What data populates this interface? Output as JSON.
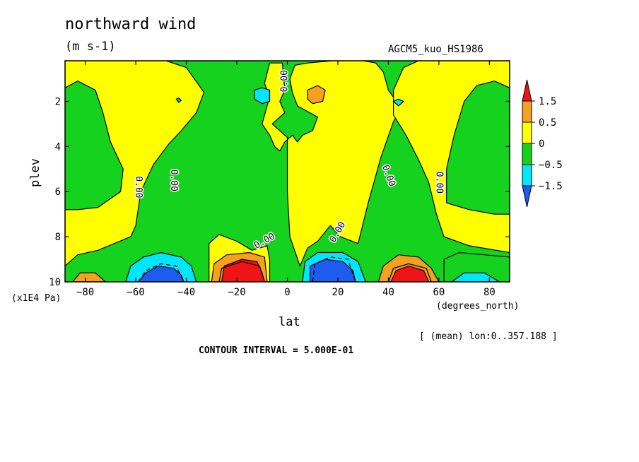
{
  "chart_data": {
    "type": "heatmap",
    "title": "northward wind",
    "units": "(m s-1)",
    "run_label": "AGCM5_kuo_HS1986",
    "xlabel": "lat",
    "x_units": "(degrees_north)",
    "ylabel": "plev",
    "y_units": "(x1E4 Pa)",
    "subset_label": "[ (mean) lon:0..357.188 ]",
    "contour_interval_label": "CONTOUR INTERVAL = 5.000E-01",
    "xlim": [
      -88,
      88
    ],
    "ylim": [
      10,
      0.2
    ],
    "x_ticks": [
      -80,
      -60,
      -40,
      -20,
      0,
      20,
      40,
      60,
      80
    ],
    "x_tick_labels": [
      "−80",
      "−60",
      "−40",
      "−20",
      "0",
      "20",
      "40",
      "60",
      "80"
    ],
    "y_ticks": [
      2,
      4,
      6,
      8,
      10
    ],
    "y_tick_labels": [
      "2",
      "4",
      "6",
      "8",
      "10"
    ],
    "contour_label": "0.00",
    "colorbar": {
      "levels": [
        -1.5,
        -0.5,
        0,
        0.5,
        1.5
      ],
      "labels": [
        "−1.5",
        "−0.5",
        "0",
        "0.5",
        "1.5"
      ],
      "colors": [
        "#1e5cf0",
        "#00e6ff",
        "#14d21e",
        "#ffff00",
        "#f5a01e",
        "#f01414"
      ]
    },
    "background_color": "#14d21e",
    "regions": [
      {
        "color": "#ffff00",
        "points": [
          [
            -88,
            0.2
          ],
          [
            -60,
            0.2
          ],
          [
            -48,
            0.2
          ],
          [
            -40,
            0.5
          ],
          [
            -33,
            1.6
          ],
          [
            -36,
            2.5
          ],
          [
            -42,
            3.3
          ],
          [
            -47,
            3.9
          ],
          [
            -53,
            4.8
          ],
          [
            -58,
            6.0
          ],
          [
            -60,
            7.5
          ],
          [
            -62,
            8.0
          ],
          [
            -75,
            8.6
          ],
          [
            -83,
            8.8
          ],
          [
            -88,
            9.3
          ]
        ]
      },
      {
        "color": "#14d21e",
        "points": [
          [
            -88,
            1.4
          ],
          [
            -83,
            1.1
          ],
          [
            -76,
            1.5
          ],
          [
            -73,
            2.5
          ],
          [
            -70,
            3.8
          ],
          [
            -65,
            5.0
          ],
          [
            -66,
            6.0
          ],
          [
            -75,
            6.7
          ],
          [
            -83,
            6.8
          ],
          [
            -88,
            6.8
          ]
        ]
      },
      {
        "color": "#ffff00",
        "points": [
          [
            -7,
            0.3
          ],
          [
            -2,
            0.3
          ],
          [
            -1,
            1.5
          ],
          [
            -3,
            2.0
          ],
          [
            -1,
            2.5
          ],
          [
            -6,
            3.0
          ],
          [
            0,
            3.6
          ],
          [
            0,
            6.0
          ],
          [
            1,
            8.0
          ],
          [
            5,
            9.3
          ],
          [
            8,
            8.5
          ],
          [
            12,
            8.2
          ],
          [
            17,
            7.5
          ],
          [
            21,
            8.0
          ],
          [
            28,
            8.3
          ],
          [
            32,
            6.5
          ],
          [
            37,
            4.5
          ],
          [
            42,
            2.9
          ],
          [
            45,
            2.3
          ],
          [
            40,
            1.5
          ],
          [
            38,
            0.7
          ],
          [
            35,
            0.3
          ],
          [
            30,
            0.2
          ],
          [
            18,
            0.2
          ],
          [
            8,
            0.3
          ],
          [
            3,
            0.4
          ],
          [
            1,
            1.0
          ],
          [
            2,
            1.6
          ],
          [
            4,
            2.2
          ],
          [
            12,
            2.7
          ],
          [
            10,
            3.3
          ],
          [
            6,
            3.5
          ],
          [
            4,
            3.8
          ],
          [
            2,
            3.5
          ],
          [
            -1,
            3.8
          ],
          [
            -3,
            4.2
          ],
          [
            -5,
            4.0
          ],
          [
            -7,
            3.5
          ],
          [
            -10,
            3.0
          ],
          [
            -7,
            1.8
          ],
          [
            -9,
            1.2
          ]
        ]
      },
      {
        "color": "#ffff00",
        "points": [
          [
            -31,
            9.0
          ],
          [
            -31,
            8.3
          ],
          [
            -27,
            7.9
          ],
          [
            -20,
            8.2
          ],
          [
            -14,
            8.6
          ],
          [
            -8,
            8.4
          ],
          [
            -7,
            9.0
          ],
          [
            -7,
            10
          ],
          [
            -31,
            10
          ]
        ]
      },
      {
        "color": "#ffff00",
        "points": [
          [
            88,
            0.2
          ],
          [
            60,
            0.2
          ],
          [
            52,
            0.2
          ],
          [
            46,
            0.5
          ],
          [
            42,
            1.5
          ],
          [
            42,
            2.6
          ],
          [
            47,
            3.5
          ],
          [
            52,
            4.6
          ],
          [
            56,
            5.6
          ],
          [
            59,
            7.0
          ],
          [
            62,
            8.0
          ],
          [
            72,
            8.4
          ],
          [
            88,
            8.7
          ]
        ]
      },
      {
        "color": "#14d21e",
        "points": [
          [
            88,
            1.4
          ],
          [
            82,
            1.1
          ],
          [
            75,
            1.3
          ],
          [
            70,
            2.0
          ],
          [
            66,
            3.5
          ],
          [
            63,
            5.0
          ],
          [
            63,
            6.5
          ],
          [
            72,
            6.8
          ],
          [
            82,
            7.0
          ],
          [
            88,
            7.0
          ]
        ]
      },
      {
        "color": "#14d21e",
        "points": [
          [
            62,
            10
          ],
          [
            62,
            9.0
          ],
          [
            68,
            8.7
          ],
          [
            78,
            8.8
          ],
          [
            88,
            8.9
          ],
          [
            88,
            10
          ]
        ]
      },
      {
        "color": "#00e6ff",
        "points": [
          [
            -64,
            10
          ],
          [
            -62,
            9.3
          ],
          [
            -57,
            8.9
          ],
          [
            -50,
            8.7
          ],
          [
            -42,
            8.9
          ],
          [
            -38,
            9.3
          ],
          [
            -36,
            10
          ]
        ]
      },
      {
        "color": "#1e5cf0",
        "points": [
          [
            -59,
            10
          ],
          [
            -56,
            9.6
          ],
          [
            -51,
            9.3
          ],
          [
            -45,
            9.4
          ],
          [
            -42,
            9.7
          ],
          [
            -41,
            10
          ]
        ]
      },
      {
        "color": "#f5a01e",
        "points": [
          [
            -30,
            10
          ],
          [
            -29,
            9.2
          ],
          [
            -24,
            8.8
          ],
          [
            -15,
            8.7
          ],
          [
            -9,
            8.9
          ],
          [
            -8,
            10
          ]
        ]
      },
      {
        "color": "#f01414",
        "points": [
          [
            -26,
            10
          ],
          [
            -25,
            9.3
          ],
          [
            -18,
            9.0
          ],
          [
            -12,
            9.1
          ],
          [
            -10,
            9.6
          ],
          [
            -9,
            10
          ]
        ]
      },
      {
        "color": "#00e6ff",
        "points": [
          [
            6,
            10
          ],
          [
            7,
            9.1
          ],
          [
            12,
            8.7
          ],
          [
            22,
            8.7
          ],
          [
            28,
            9.1
          ],
          [
            31,
            10
          ]
        ]
      },
      {
        "color": "#1e5cf0",
        "points": [
          [
            9,
            10
          ],
          [
            9,
            9.3
          ],
          [
            15,
            9.0
          ],
          [
            22,
            9.1
          ],
          [
            26,
            9.5
          ],
          [
            27,
            10
          ]
        ]
      },
      {
        "color": "#f5a01e",
        "points": [
          [
            36,
            10
          ],
          [
            38,
            9.3
          ],
          [
            44,
            8.8
          ],
          [
            52,
            8.9
          ],
          [
            57,
            9.4
          ],
          [
            60,
            10
          ]
        ]
      },
      {
        "color": "#f01414",
        "points": [
          [
            41,
            10
          ],
          [
            43,
            9.5
          ],
          [
            48,
            9.3
          ],
          [
            54,
            9.5
          ],
          [
            56,
            10
          ]
        ]
      },
      {
        "color": "#f5a01e",
        "points": [
          [
            -85,
            10
          ],
          [
            -82,
            9.6
          ],
          [
            -76,
            9.6
          ],
          [
            -72,
            10
          ]
        ]
      },
      {
        "color": "#00e6ff",
        "points": [
          [
            65,
            10
          ],
          [
            70,
            9.6
          ],
          [
            78,
            9.6
          ],
          [
            84,
            10
          ]
        ]
      },
      {
        "color": "#00e6ff",
        "points": [
          [
            -13,
            1.5
          ],
          [
            -10,
            1.4
          ],
          [
            -7,
            1.5
          ],
          [
            -7,
            2.0
          ],
          [
            -10,
            2.1
          ],
          [
            -13,
            1.9
          ]
        ]
      },
      {
        "color": "#f5a01e",
        "points": [
          [
            8,
            1.5
          ],
          [
            12,
            1.3
          ],
          [
            15,
            1.5
          ],
          [
            14,
            2.0
          ],
          [
            10,
            2.1
          ],
          [
            8,
            1.9
          ]
        ]
      },
      {
        "color": "#00e6ff",
        "points": [
          [
            42,
            2.0
          ],
          [
            44,
            1.9
          ],
          [
            46,
            2.0
          ],
          [
            44,
            2.2
          ]
        ]
      },
      {
        "color": "#14d21e",
        "points": [
          [
            -44,
            1.9
          ],
          [
            -43,
            1.85
          ],
          [
            -42,
            1.95
          ],
          [
            -43,
            2.05
          ]
        ]
      }
    ],
    "dashed_contours": [
      [
        [
          -59,
          10
        ],
        [
          -56,
          9.5
        ],
        [
          -50,
          9.2
        ],
        [
          -44,
          9.3
        ],
        [
          -41,
          10
        ]
      ],
      [
        [
          10,
          10
        ],
        [
          11,
          9.2
        ],
        [
          17,
          8.9
        ],
        [
          24,
          9.0
        ],
        [
          27,
          10
        ]
      ]
    ],
    "solid_contours": [
      [
        [
          -27,
          10
        ],
        [
          -26,
          9.4
        ],
        [
          -18,
          9.1
        ],
        [
          -11,
          9.3
        ],
        [
          -9,
          10
        ]
      ],
      [
        [
          40,
          10
        ],
        [
          42,
          9.4
        ],
        [
          48,
          9.2
        ],
        [
          55,
          9.4
        ],
        [
          57,
          10
        ]
      ]
    ],
    "contour_labels": [
      {
        "x": -59,
        "y": 5.8,
        "angle": 90
      },
      {
        "x": -45,
        "y": 5.5,
        "angle": 90
      },
      {
        "x": -9,
        "y": 8.2,
        "angle": -30
      },
      {
        "x": -1,
        "y": 1.1,
        "angle": -90
      },
      {
        "x": 20,
        "y": 7.8,
        "angle": -60
      },
      {
        "x": 40,
        "y": 5.3,
        "angle": 70
      },
      {
        "x": 60,
        "y": 5.6,
        "angle": 90
      }
    ]
  }
}
